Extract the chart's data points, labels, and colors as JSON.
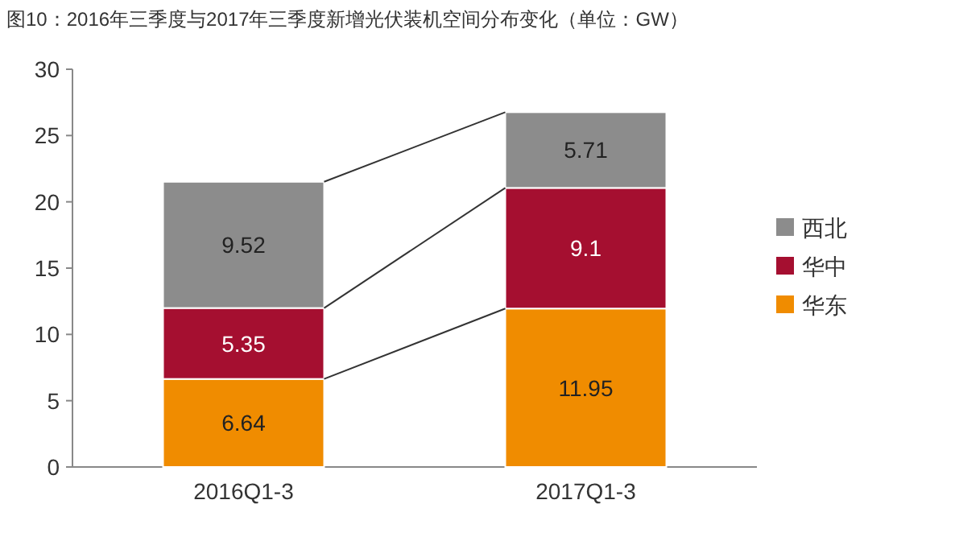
{
  "chart_data": {
    "type": "bar",
    "stacked": true,
    "title": "图10：2016年三季度与2017年三季度新增光伏装机空间分布变化（单位：GW）",
    "categories": [
      "2016Q1-3",
      "2017Q1-3"
    ],
    "series": [
      {
        "name": "华东",
        "color": "#f08c00",
        "values": [
          6.64,
          11.95
        ]
      },
      {
        "name": "华中",
        "color": "#a50f30",
        "values": [
          5.35,
          9.1
        ]
      },
      {
        "name": "西北",
        "color": "#8c8c8c",
        "values": [
          9.52,
          5.71
        ]
      }
    ],
    "ylim": [
      0,
      30
    ],
    "yticks": [
      0,
      5,
      10,
      15,
      20,
      25,
      30
    ],
    "grid": false,
    "legend": "right",
    "data_labels": true
  }
}
